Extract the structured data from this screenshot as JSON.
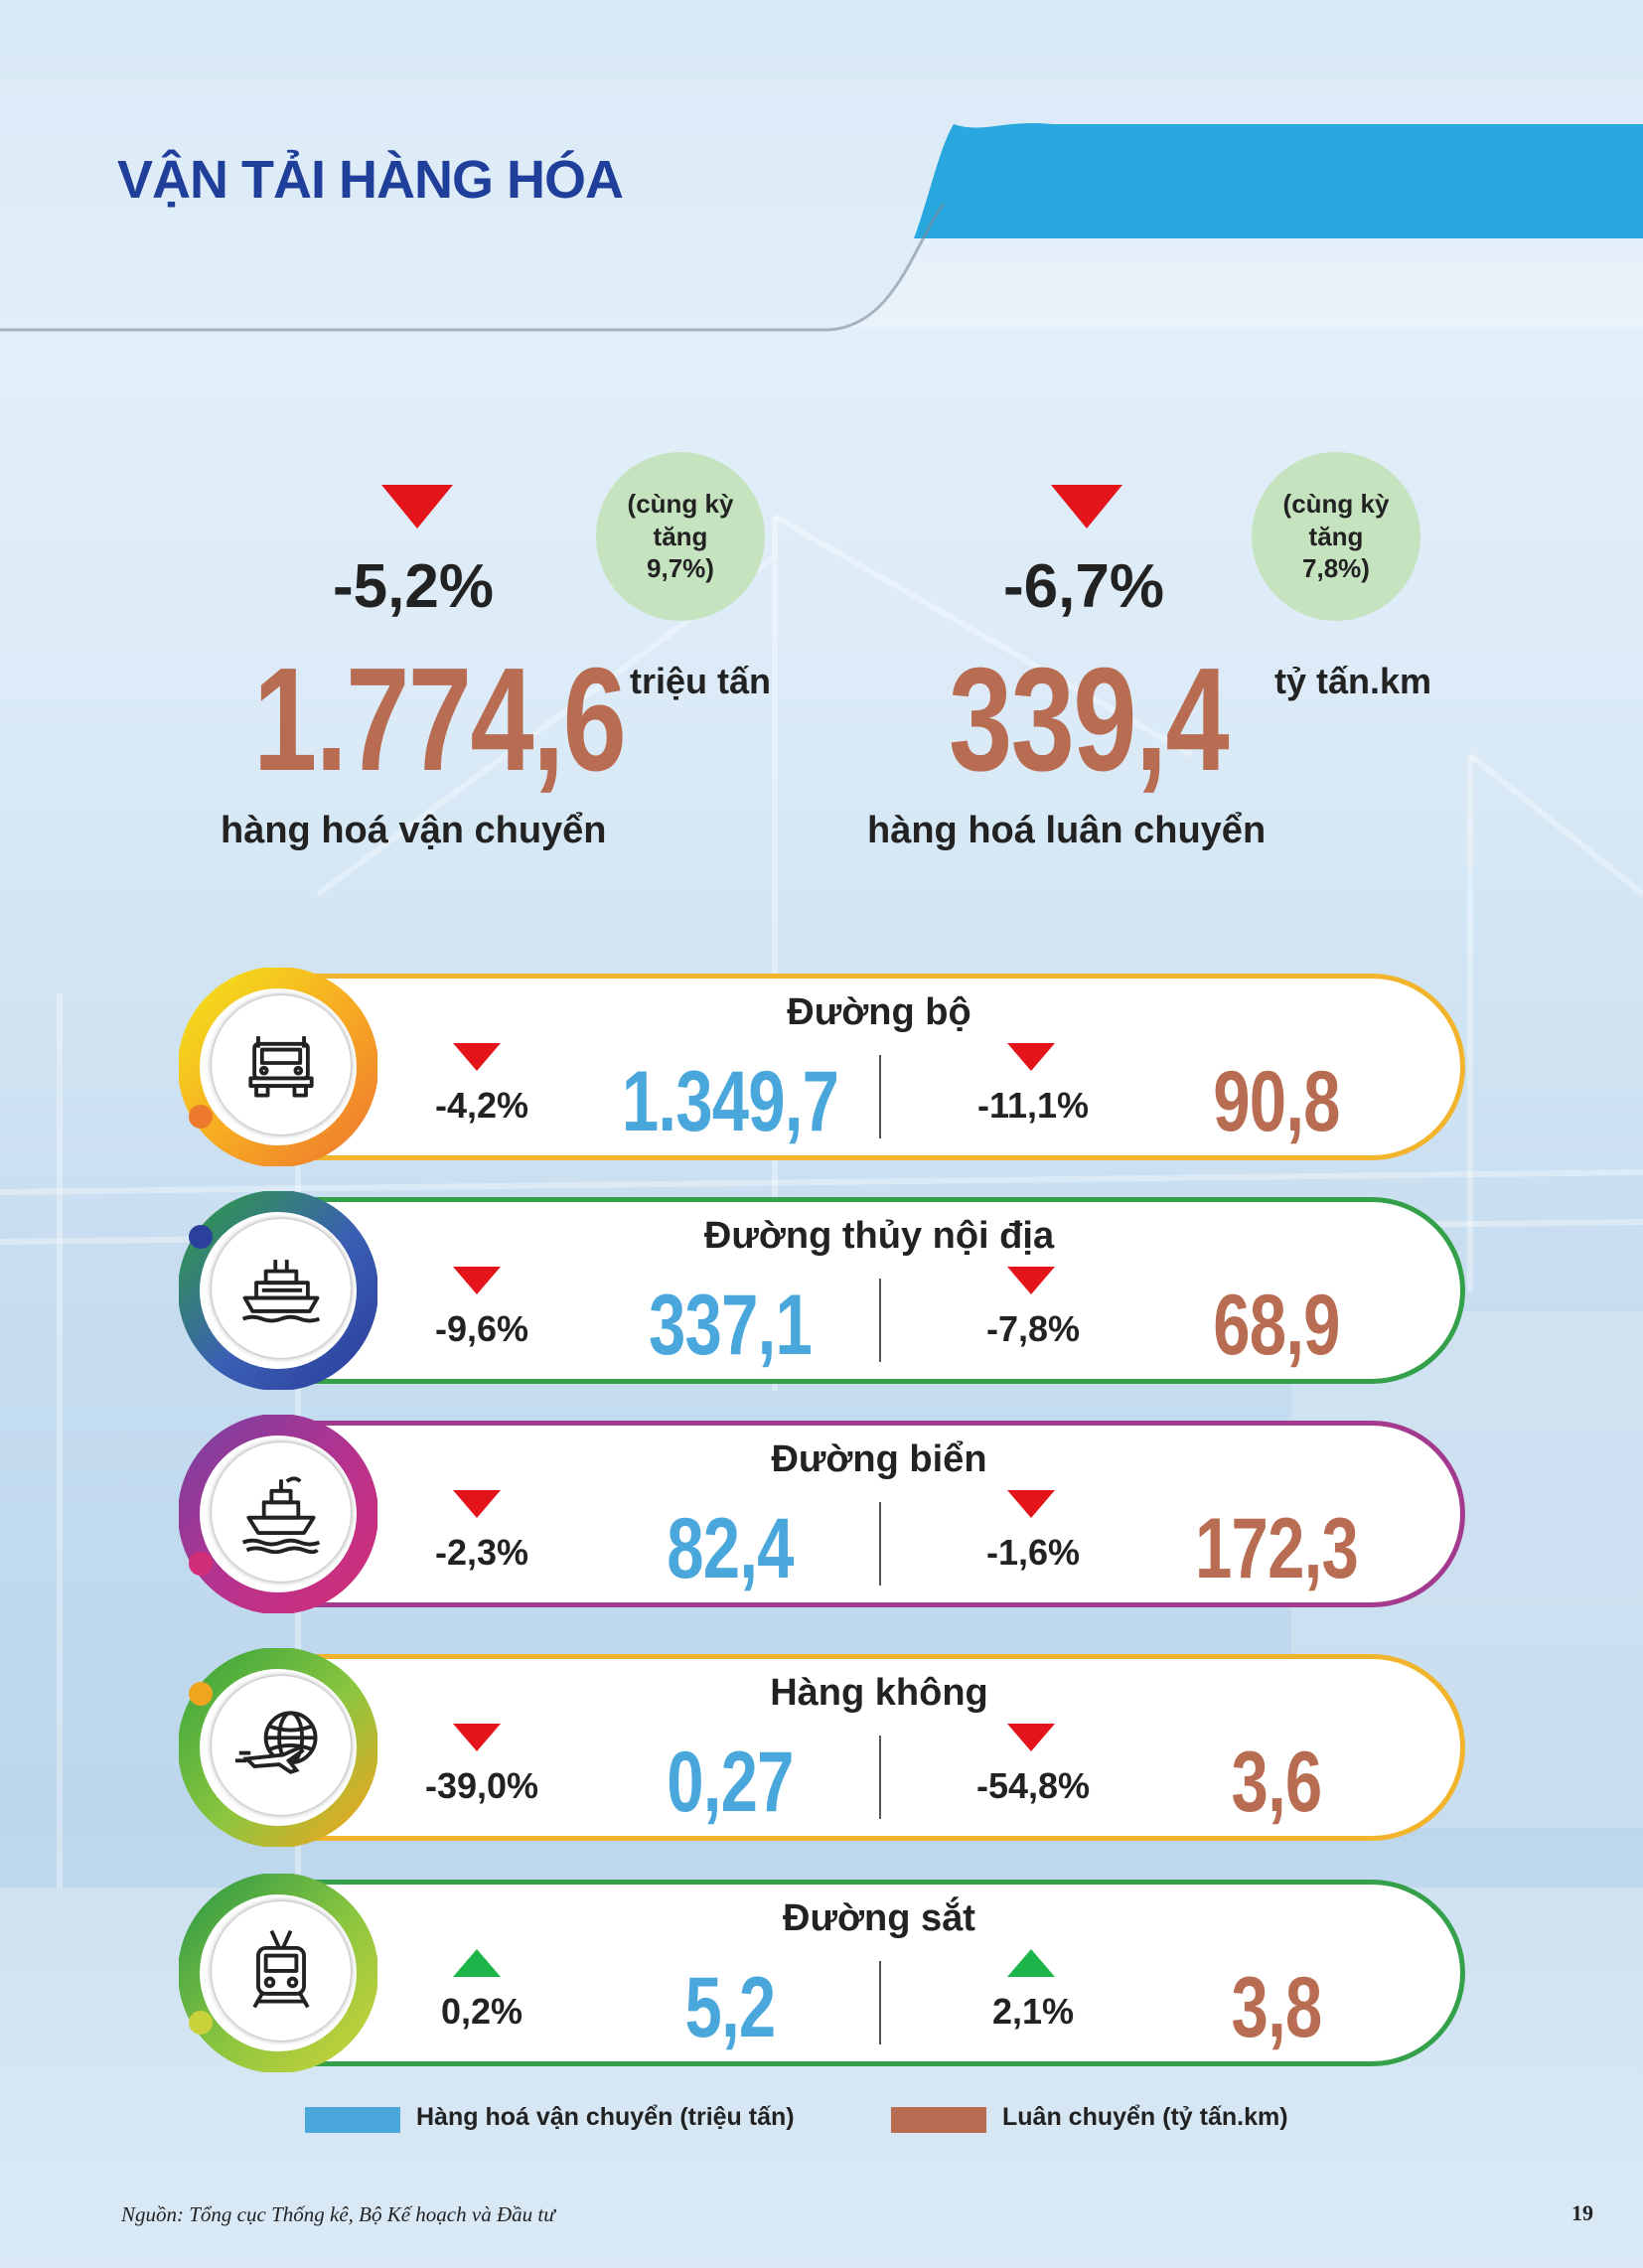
{
  "page": {
    "title": "VẬN TẢI HÀNG HÓA",
    "source": "Nguồn: Tổng cục Thống kê, Bộ Kế hoạch và Đầu tư",
    "page_number": "19"
  },
  "summary": {
    "transport": {
      "change": "-5,2%",
      "value": "1.774,6",
      "unit": "triệu tấn",
      "caption": "hàng hoá vận chuyển",
      "compare_lines": [
        "(cùng kỳ",
        "tăng",
        "9,7%)"
      ]
    },
    "rotation": {
      "change": "-6,7%",
      "value": "339,4",
      "unit": "tỷ tấn.km",
      "caption": "hàng hoá luân chuyển",
      "compare_lines": [
        "(cùng kỳ",
        "tăng",
        "7,8%)"
      ]
    }
  },
  "modes": [
    {
      "name": "Đường bộ",
      "icon": "truck-icon",
      "transport_change": "-4,2%",
      "transport_value": "1.349,7",
      "transport_dir": "down",
      "rotation_change": "-11,1%",
      "rotation_value": "90,8",
      "rotation_dir": "down",
      "ring_colors": [
        "#f3e11b",
        "#f7a823",
        "#ee7a2e"
      ],
      "border_color": "#f1b42c"
    },
    {
      "name": "Đường thủy nội địa",
      "icon": "boat-icon",
      "transport_change": "-9,6%",
      "transport_value": "337,1",
      "transport_dir": "down",
      "rotation_change": "-7,8%",
      "rotation_value": "68,9",
      "rotation_dir": "down",
      "ring_colors": [
        "#2f9a46",
        "#3b5fb4",
        "#2b3f9c"
      ],
      "border_color": "#34a04a"
    },
    {
      "name": "Đường biển",
      "icon": "ship-icon",
      "transport_change": "-2,3%",
      "transport_value": "82,4",
      "transport_dir": "down",
      "rotation_change": "-1,6%",
      "rotation_value": "172,3",
      "rotation_dir": "down",
      "ring_colors": [
        "#7b3fa0",
        "#b7328e",
        "#d22e77"
      ],
      "border_color": "#a43a8e"
    },
    {
      "name": "Hàng không",
      "icon": "plane-globe-icon",
      "transport_change": "-39,0%",
      "transport_value": "0,27",
      "transport_dir": "down",
      "rotation_change": "-54,8%",
      "rotation_value": "3,6",
      "rotation_dir": "down",
      "ring_colors": [
        "#3aa53c",
        "#8cc63f",
        "#f0a51f"
      ],
      "border_color": "#f1b42c"
    },
    {
      "name": "Đường sắt",
      "icon": "train-icon",
      "transport_change": "0,2%",
      "transport_value": "5,2",
      "transport_dir": "up",
      "rotation_change": "2,1%",
      "rotation_value": "3,8",
      "rotation_dir": "up",
      "ring_colors": [
        "#2f9a46",
        "#8cc63f",
        "#c9d23a"
      ],
      "border_color": "#34a04a"
    }
  ],
  "legend": [
    {
      "label": "Hàng hoá vận chuyển (triệu tấn)",
      "color": "#4aa7dc"
    },
    {
      "label": "Luân chuyển (tỷ tấn.km)",
      "color": "#b86c52"
    }
  ],
  "colors": {
    "title": "#1f3f9a",
    "transport_value": "#4aa7dc",
    "rotation_value": "#b86c52",
    "down_arrow": "#e3151b",
    "up_arrow": "#1db44a",
    "header_accent": "#29a8e0"
  }
}
